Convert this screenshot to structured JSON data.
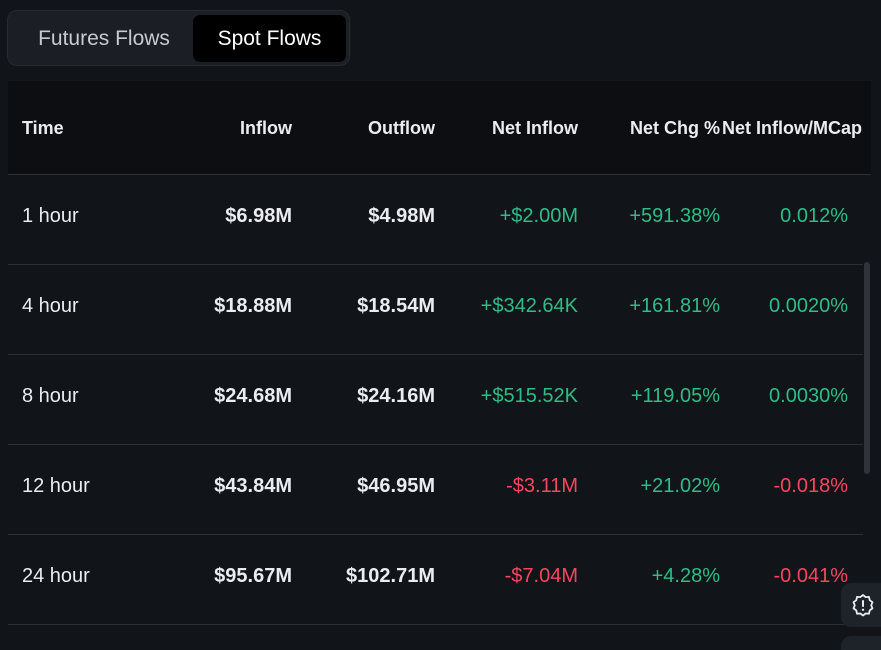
{
  "tabs": [
    {
      "label": "Futures Flows",
      "active": false
    },
    {
      "label": "Spot Flows",
      "active": true
    }
  ],
  "table": {
    "headers": {
      "time": "Time",
      "inflow": "Inflow",
      "outflow": "Outflow",
      "net_inflow": "Net Inflow",
      "net_chg": "Net Chg %",
      "net_inflow_mcap": "Net Inflow/MCap"
    },
    "rows": [
      {
        "time": "1 hour",
        "inflow": "$6.98M",
        "outflow": "$4.98M",
        "net_inflow": "+$2.00M",
        "net_chg": "+591.38%",
        "net_inflow_mcap": "0.012%"
      },
      {
        "time": "4 hour",
        "inflow": "$18.88M",
        "outflow": "$18.54M",
        "net_inflow": "+$342.64K",
        "net_chg": "+161.81%",
        "net_inflow_mcap": "0.0020%"
      },
      {
        "time": "8 hour",
        "inflow": "$24.68M",
        "outflow": "$24.16M",
        "net_inflow": "+$515.52K",
        "net_chg": "+119.05%",
        "net_inflow_mcap": "0.0030%"
      },
      {
        "time": "12 hour",
        "inflow": "$43.84M",
        "outflow": "$46.95M",
        "net_inflow": "-$3.11M",
        "net_chg": "+21.02%",
        "net_inflow_mcap": "-0.018%"
      },
      {
        "time": "24 hour",
        "inflow": "$95.67M",
        "outflow": "$102.71M",
        "net_inflow": "-$7.04M",
        "net_chg": "+4.28%",
        "net_inflow_mcap": "-0.041%"
      }
    ]
  },
  "colors": {
    "positive": "#2ebd85",
    "negative": "#f6465d",
    "background": "#111419"
  },
  "icons": {
    "support": "alert-badge-icon"
  }
}
